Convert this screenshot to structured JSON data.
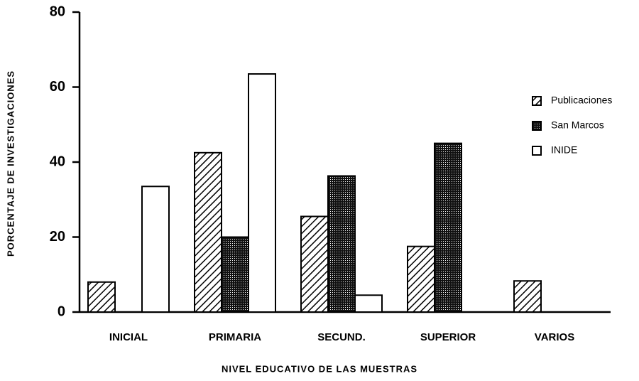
{
  "chart_data": {
    "type": "bar",
    "categories": [
      "INICIAL",
      "PRIMARIA",
      "SECUND.",
      "SUPERIOR",
      "VARIOS"
    ],
    "series": [
      {
        "name": "Publicaciones",
        "color": "#000000",
        "pattern": "hatch",
        "values": [
          8,
          42.5,
          25.5,
          17.5,
          8.3
        ]
      },
      {
        "name": "San Marcos",
        "color": "#000000",
        "pattern": "dots",
        "values": [
          0,
          20,
          36.3,
          45,
          0
        ]
      },
      {
        "name": "INIDE",
        "color": "#000000",
        "pattern": "none",
        "values": [
          33.5,
          63.5,
          4.5,
          0,
          0
        ]
      }
    ],
    "ylabel": "PORCENTAJE DE INVESTIGACIONES",
    "xlabel": "NIVEL EDUCATIVO DE LAS MUESTRAS",
    "ylim": [
      0,
      80
    ],
    "yticks": [
      0,
      20,
      40,
      60,
      80
    ],
    "grid": false,
    "legend": "right"
  }
}
